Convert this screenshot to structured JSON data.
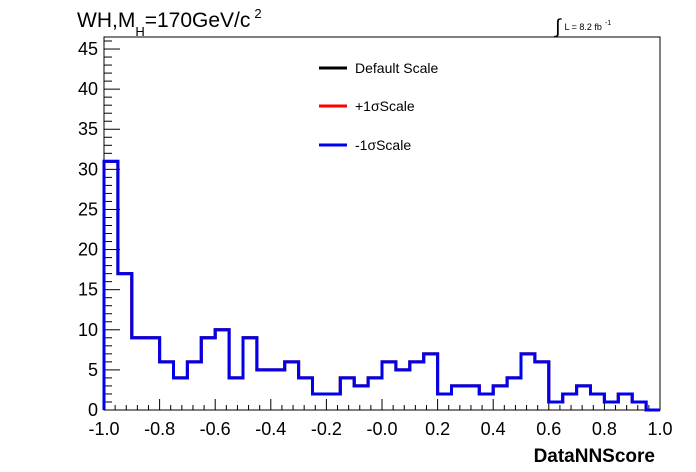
{
  "title": {
    "main": "WH,M",
    "subscript": "H",
    "rest": "=170GeV/c",
    "superscript": "2"
  },
  "luminosity": {
    "integral_symbol": "∫",
    "text": "L = 8.2 fb",
    "exponent": "-1"
  },
  "chart_data": {
    "type": "line",
    "style": "step-histogram",
    "xlabel": "DataNNScore",
    "ylabel": "",
    "xlim": [
      -1.0,
      1.0
    ],
    "ylim": [
      0,
      46.5
    ],
    "x_ticks": [
      "-1.0",
      "-0.8",
      "-0.6",
      "-0.4",
      "-0.2",
      "-0.0",
      "0.2",
      "0.4",
      "0.6",
      "0.8",
      "1.0"
    ],
    "x_tick_values": [
      -1.0,
      -0.8,
      -0.6,
      -0.4,
      -0.2,
      0.0,
      0.2,
      0.4,
      0.6,
      0.8,
      1.0
    ],
    "y_ticks": [
      "0",
      "5",
      "10",
      "15",
      "20",
      "25",
      "30",
      "35",
      "40",
      "45"
    ],
    "y_tick_values": [
      0,
      5,
      10,
      15,
      20,
      25,
      30,
      35,
      40,
      45
    ],
    "bin_edges": [
      -1.0,
      -0.95,
      -0.9,
      -0.85,
      -0.8,
      -0.75,
      -0.7,
      -0.65,
      -0.6,
      -0.55,
      -0.5,
      -0.45,
      -0.4,
      -0.35,
      -0.3,
      -0.25,
      -0.2,
      -0.15,
      -0.1,
      -0.05,
      0.0,
      0.05,
      0.1,
      0.15,
      0.2,
      0.25,
      0.3,
      0.35,
      0.4,
      0.45,
      0.5,
      0.55,
      0.6,
      0.65,
      0.7,
      0.75,
      0.8,
      0.85,
      0.9,
      0.95,
      1.0
    ],
    "series": [
      {
        "name": "Default Scale",
        "color": "#000000",
        "values": [
          31,
          17,
          9,
          9,
          6,
          4,
          6,
          9,
          10,
          4,
          9,
          5,
          5,
          6,
          4,
          2,
          2,
          4,
          3,
          4,
          6,
          5,
          6,
          7,
          2,
          3,
          3,
          2,
          3,
          4,
          7,
          6,
          1,
          2,
          3,
          2,
          1,
          2,
          1,
          0
        ]
      },
      {
        "name": "+1σScale",
        "color": "#ff0000",
        "values": [
          31,
          17,
          9,
          9,
          6,
          4,
          6,
          9,
          10,
          4,
          9,
          5,
          5,
          6,
          4,
          2,
          2,
          4,
          3,
          4,
          6,
          5,
          6,
          7,
          2,
          3,
          3,
          2,
          3,
          4,
          7,
          6,
          1,
          2,
          3,
          2,
          1,
          2,
          1,
          0
        ]
      },
      {
        "name": "-1σScale",
        "color": "#0000ee",
        "values": [
          31,
          17,
          9,
          9,
          6,
          4,
          6,
          9,
          10,
          4,
          9,
          5,
          5,
          6,
          4,
          2,
          2,
          4,
          3,
          4,
          6,
          5,
          6,
          7,
          2,
          3,
          3,
          2,
          3,
          4,
          7,
          6,
          1,
          2,
          3,
          2,
          1,
          2,
          1,
          0
        ]
      }
    ],
    "legend_placement": "top-center",
    "grid": false
  }
}
